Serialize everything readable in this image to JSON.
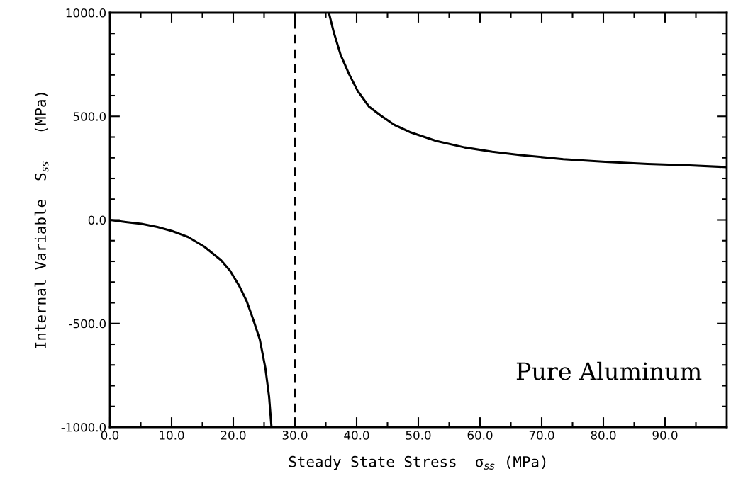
{
  "chart_data": {
    "type": "line",
    "xlabel": "Steady State Stress  σ$_{ss}$ (MPa)",
    "ylabel": "Internal Variable  S$_{ss}$   (MPa)",
    "annotations": [
      "Pure Aluminum"
    ],
    "series": [
      {
        "color": "#000000",
        "x": [
          0,
          2.8,
          5.1,
          7.7,
          10.1,
          12.7,
          15.3,
          18.0,
          19.5,
          21.0,
          22.2,
          23.3,
          24.3,
          25.2,
          25.8,
          26.2
        ],
        "values": [
          0,
          -11,
          -19,
          -34,
          -54,
          -83,
          -129,
          -194,
          -246,
          -320,
          -394,
          -486,
          -577,
          -714,
          -851,
          -1000
        ]
      },
      {
        "color": "#000000",
        "x": [
          35.5,
          36.3,
          37.4,
          38.8,
          40.2,
          42.0,
          43.8,
          46.1,
          48.8,
          52.9,
          57.5,
          62.0,
          66.6,
          73.5,
          80.3,
          87.2,
          94.0,
          100
        ],
        "values": [
          1000,
          905,
          797,
          702,
          621,
          547,
          506,
          459,
          422,
          381,
          350,
          329,
          313,
          293,
          280,
          270,
          263,
          255
        ]
      }
    ],
    "ref_lines": [
      {
        "axis": "x",
        "value": 30,
        "color": "#000000",
        "line_style": "dashed"
      }
    ],
    "line_style": "solid",
    "marker": "none",
    "grid": false,
    "legend": false,
    "xlim": [
      0,
      100
    ],
    "xticks": [
      {
        "value": 0,
        "label": "0.0"
      },
      {
        "value": 5,
        "label": null
      },
      {
        "value": 10,
        "label": "10.0"
      },
      {
        "value": 15,
        "label": null
      },
      {
        "value": 20,
        "label": "20.0"
      },
      {
        "value": 25,
        "label": null
      },
      {
        "value": 30,
        "label": "30.0"
      },
      {
        "value": 35,
        "label": null
      },
      {
        "value": 40,
        "label": "40.0"
      },
      {
        "value": 45,
        "label": null
      },
      {
        "value": 50,
        "label": "50.0"
      },
      {
        "value": 55,
        "label": null
      },
      {
        "value": 60,
        "label": "60.0"
      },
      {
        "value": 65,
        "label": null
      },
      {
        "value": 70,
        "label": "70.0"
      },
      {
        "value": 75,
        "label": null
      },
      {
        "value": 80,
        "label": "80.0"
      },
      {
        "value": 85,
        "label": null
      },
      {
        "value": 90,
        "label": "90.0"
      },
      {
        "value": 95,
        "label": null
      }
    ],
    "ylim": [
      -1000,
      1000
    ],
    "yticks": [
      {
        "value": -1000,
        "label": "-1000.0"
      },
      {
        "value": -900,
        "label": null
      },
      {
        "value": -800,
        "label": null
      },
      {
        "value": -700,
        "label": null
      },
      {
        "value": -600,
        "label": null
      },
      {
        "value": -500,
        "label": "-500.0"
      },
      {
        "value": -400,
        "label": null
      },
      {
        "value": -300,
        "label": null
      },
      {
        "value": -200,
        "label": null
      },
      {
        "value": -100,
        "label": null
      },
      {
        "value": 0,
        "label": "0.0"
      },
      {
        "value": 100,
        "label": null
      },
      {
        "value": 200,
        "label": null
      },
      {
        "value": 300,
        "label": null
      },
      {
        "value": 400,
        "label": null
      },
      {
        "value": 500,
        "label": "500.0"
      },
      {
        "value": 600,
        "label": null
      },
      {
        "value": 700,
        "label": null
      },
      {
        "value": 800,
        "label": null
      },
      {
        "value": 900,
        "label": null
      },
      {
        "value": 1000,
        "label": "1000.0"
      }
    ]
  }
}
